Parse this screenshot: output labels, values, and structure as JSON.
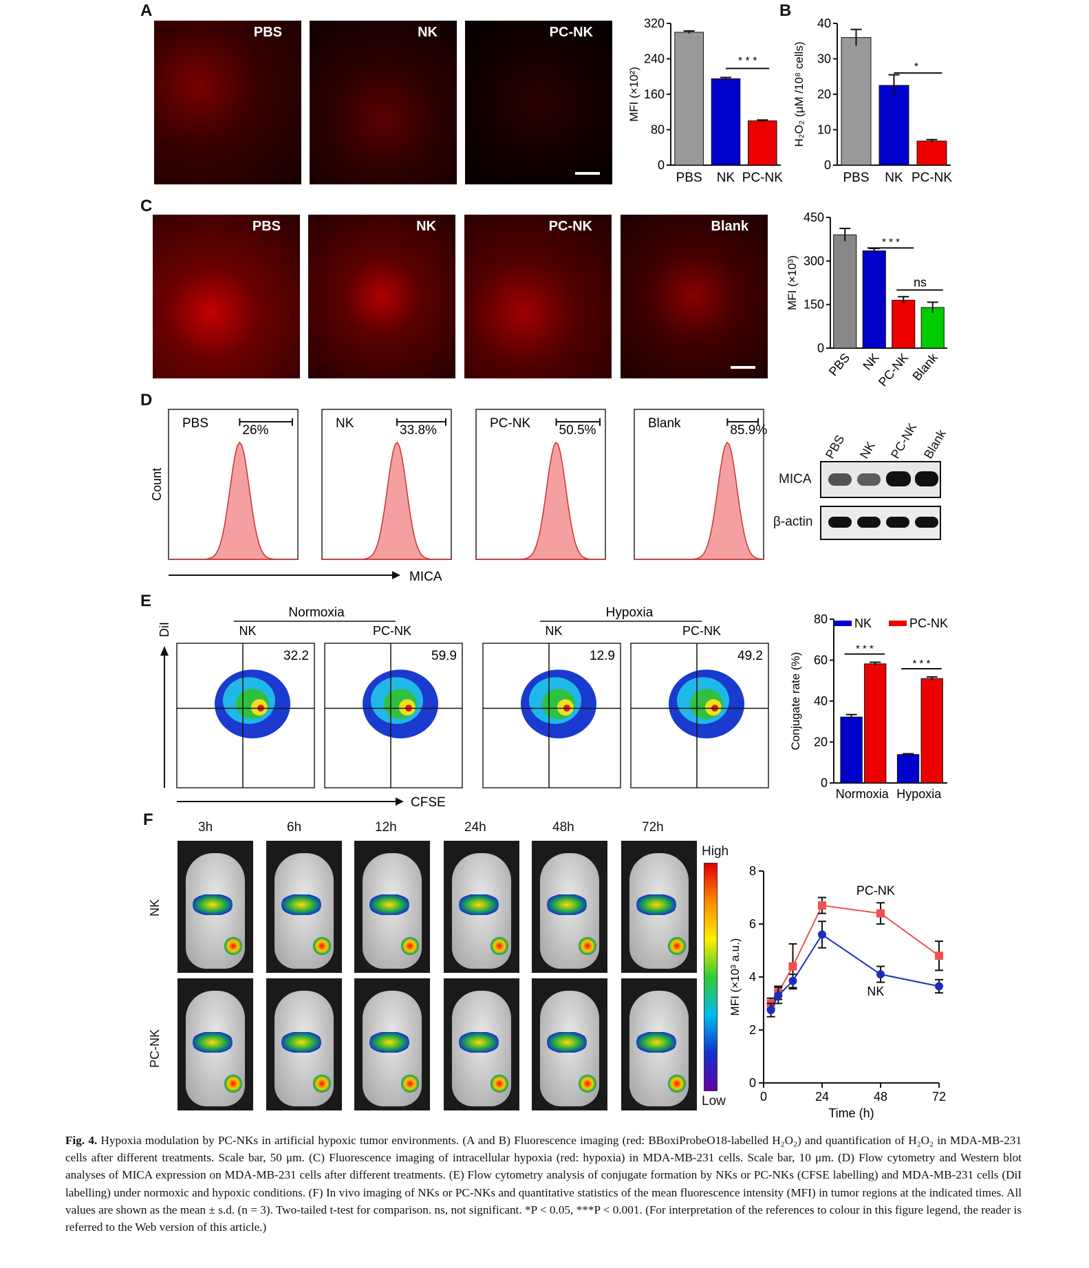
{
  "panels": {
    "A": "A",
    "B": "B",
    "C": "C",
    "D": "D",
    "E": "E",
    "F": "F"
  },
  "panelA": {
    "images": [
      "PBS",
      "NK",
      "PC-NK"
    ]
  },
  "panelC": {
    "images": [
      "PBS",
      "NK",
      "PC-NK",
      "Blank"
    ]
  },
  "panelD": {
    "histograms": [
      {
        "label": "PBS",
        "pct": "26%"
      },
      {
        "label": "NK",
        "pct": "33.8%"
      },
      {
        "label": "PC-NK",
        "pct": "50.5%"
      },
      {
        "label": "Blank",
        "pct": "85.9%"
      }
    ],
    "ylabel": "Count",
    "xlabel": "MICA",
    "blot": {
      "lanes": [
        "PBS",
        "NK",
        "PC-NK",
        "Blank"
      ],
      "rows": [
        "MICA",
        "β-actin"
      ]
    }
  },
  "panelE": {
    "groups": [
      {
        "label": "Normoxia",
        "subs": [
          "NK",
          "PC-NK"
        ]
      },
      {
        "label": "Hypoxia",
        "subs": [
          "NK",
          "PC-NK"
        ]
      }
    ],
    "quadrant_values": [
      "32.2",
      "59.9",
      "12.9",
      "49.2"
    ],
    "ylabel": "DiI",
    "xlabel": "CFSE"
  },
  "panelF": {
    "times": [
      "3h",
      "6h",
      "12h",
      "24h",
      "48h",
      "72h"
    ],
    "rows": [
      "NK",
      "PC-NK"
    ],
    "colorbar": {
      "high": "High",
      "low": "Low"
    }
  },
  "chart_data": [
    {
      "id": "A",
      "type": "bar",
      "categories": [
        "PBS",
        "NK",
        "PC-NK"
      ],
      "values": [
        300,
        195,
        100
      ],
      "errors": [
        3,
        3,
        2
      ],
      "colors": [
        "#999999",
        "#0000cc",
        "#ee0000"
      ],
      "ylabel": "MFI (×10²)",
      "yticks": [
        0,
        80,
        160,
        240,
        320
      ],
      "ylim": [
        0,
        320
      ],
      "annotations": [
        "* * *"
      ]
    },
    {
      "id": "B",
      "type": "bar",
      "categories": [
        "PBS",
        "NK",
        "PC-NK"
      ],
      "values": [
        36,
        22.5,
        6.8
      ],
      "errors": [
        2.3,
        3,
        0.4
      ],
      "colors": [
        "#999999",
        "#0000cc",
        "#ee0000"
      ],
      "ylabel": "H₂O₂ (μM /10⁸ cells)",
      "yticks": [
        0,
        10,
        20,
        30,
        40
      ],
      "ylim": [
        0,
        40
      ],
      "annotations": [
        "*"
      ]
    },
    {
      "id": "C",
      "type": "bar",
      "categories": [
        "PBS",
        "NK",
        "PC-NK",
        "Blank"
      ],
      "values": [
        390,
        335,
        165,
        140
      ],
      "errors": [
        22,
        8,
        12,
        18
      ],
      "colors": [
        "#888888",
        "#0000cc",
        "#ee0000",
        "#00cc00"
      ],
      "ylabel": "MFI (×10³)",
      "yticks": [
        0,
        150,
        300,
        450
      ],
      "ylim": [
        0,
        450
      ],
      "annotations": [
        "* * *",
        "ns"
      ]
    },
    {
      "id": "E",
      "type": "bar",
      "categories": [
        "Normoxia",
        "Hypoxia"
      ],
      "series": [
        {
          "name": "NK",
          "values": [
            32.2,
            13.9
          ],
          "errors": [
            1.2,
            0.4
          ],
          "color": "#0000cc"
        },
        {
          "name": "PC-NK",
          "values": [
            58.2,
            51
          ],
          "errors": [
            0.8,
            0.8
          ],
          "color": "#ee0000"
        }
      ],
      "ylabel": "Conjugate rate (%)",
      "yticks": [
        0,
        20,
        40,
        60,
        80
      ],
      "ylim": [
        0,
        80
      ],
      "annotations": [
        "* * *",
        "* * *"
      ]
    },
    {
      "id": "F",
      "type": "line",
      "x": [
        3,
        6,
        12,
        24,
        48,
        72
      ],
      "series": [
        {
          "name": "PC-NK",
          "values": [
            3.0,
            3.4,
            4.4,
            6.7,
            6.4,
            4.8
          ],
          "errors": [
            0.2,
            0.25,
            0.85,
            0.3,
            0.4,
            0.55
          ],
          "color": "#f05050"
        },
        {
          "name": "NK",
          "values": [
            2.75,
            3.3,
            3.85,
            5.6,
            4.1,
            3.65
          ],
          "errors": [
            0.25,
            0.3,
            0.25,
            0.5,
            0.3,
            0.25
          ],
          "color": "#1a2fbf"
        }
      ],
      "xlabel": "Time (h)",
      "ylabel": "MFI (×10³ a.u.)",
      "xticks": [
        0,
        24,
        48,
        72
      ],
      "yticks": [
        0,
        2,
        4,
        6,
        8
      ],
      "xlim": [
        0,
        72
      ],
      "ylim": [
        0,
        8
      ]
    }
  ],
  "caption": {
    "lead": "Fig. 4.",
    "text": "Hypoxia modulation by PC-NKs in artificial hypoxic tumor environments. (A and B) Fluorescence imaging (red: BBoxiProbeO18-labelled H₂O₂) and quantification of H₂O₂ in MDA-MB-231 cells after different treatments. Scale bar, 50 μm. (C) Fluorescence imaging of intracellular hypoxia (red: hypoxia) in MDA-MB-231 cells. Scale bar, 10 μm. (D) Flow cytometry and Western blot analyses of MICA expression on MDA-MB-231 cells after different treatments. (E) Flow cytometry analysis of conjugate formation by NKs or PC-NKs (CFSE labelling) and MDA-MB-231 cells (DiI labelling) under normoxic and hypoxic conditions. (F) In vivo imaging of NKs or PC-NKs and quantitative statistics of the mean fluorescence intensity (MFI) in tumor regions at the indicated times. All values are shown as the mean ± s.d. (n = 3). Two-tailed t-test for comparison. ns, not significant. *P < 0.05, ***P < 0.001. (For interpretation of the references to colour in this figure legend, the reader is referred to the Web version of this article.)"
  }
}
